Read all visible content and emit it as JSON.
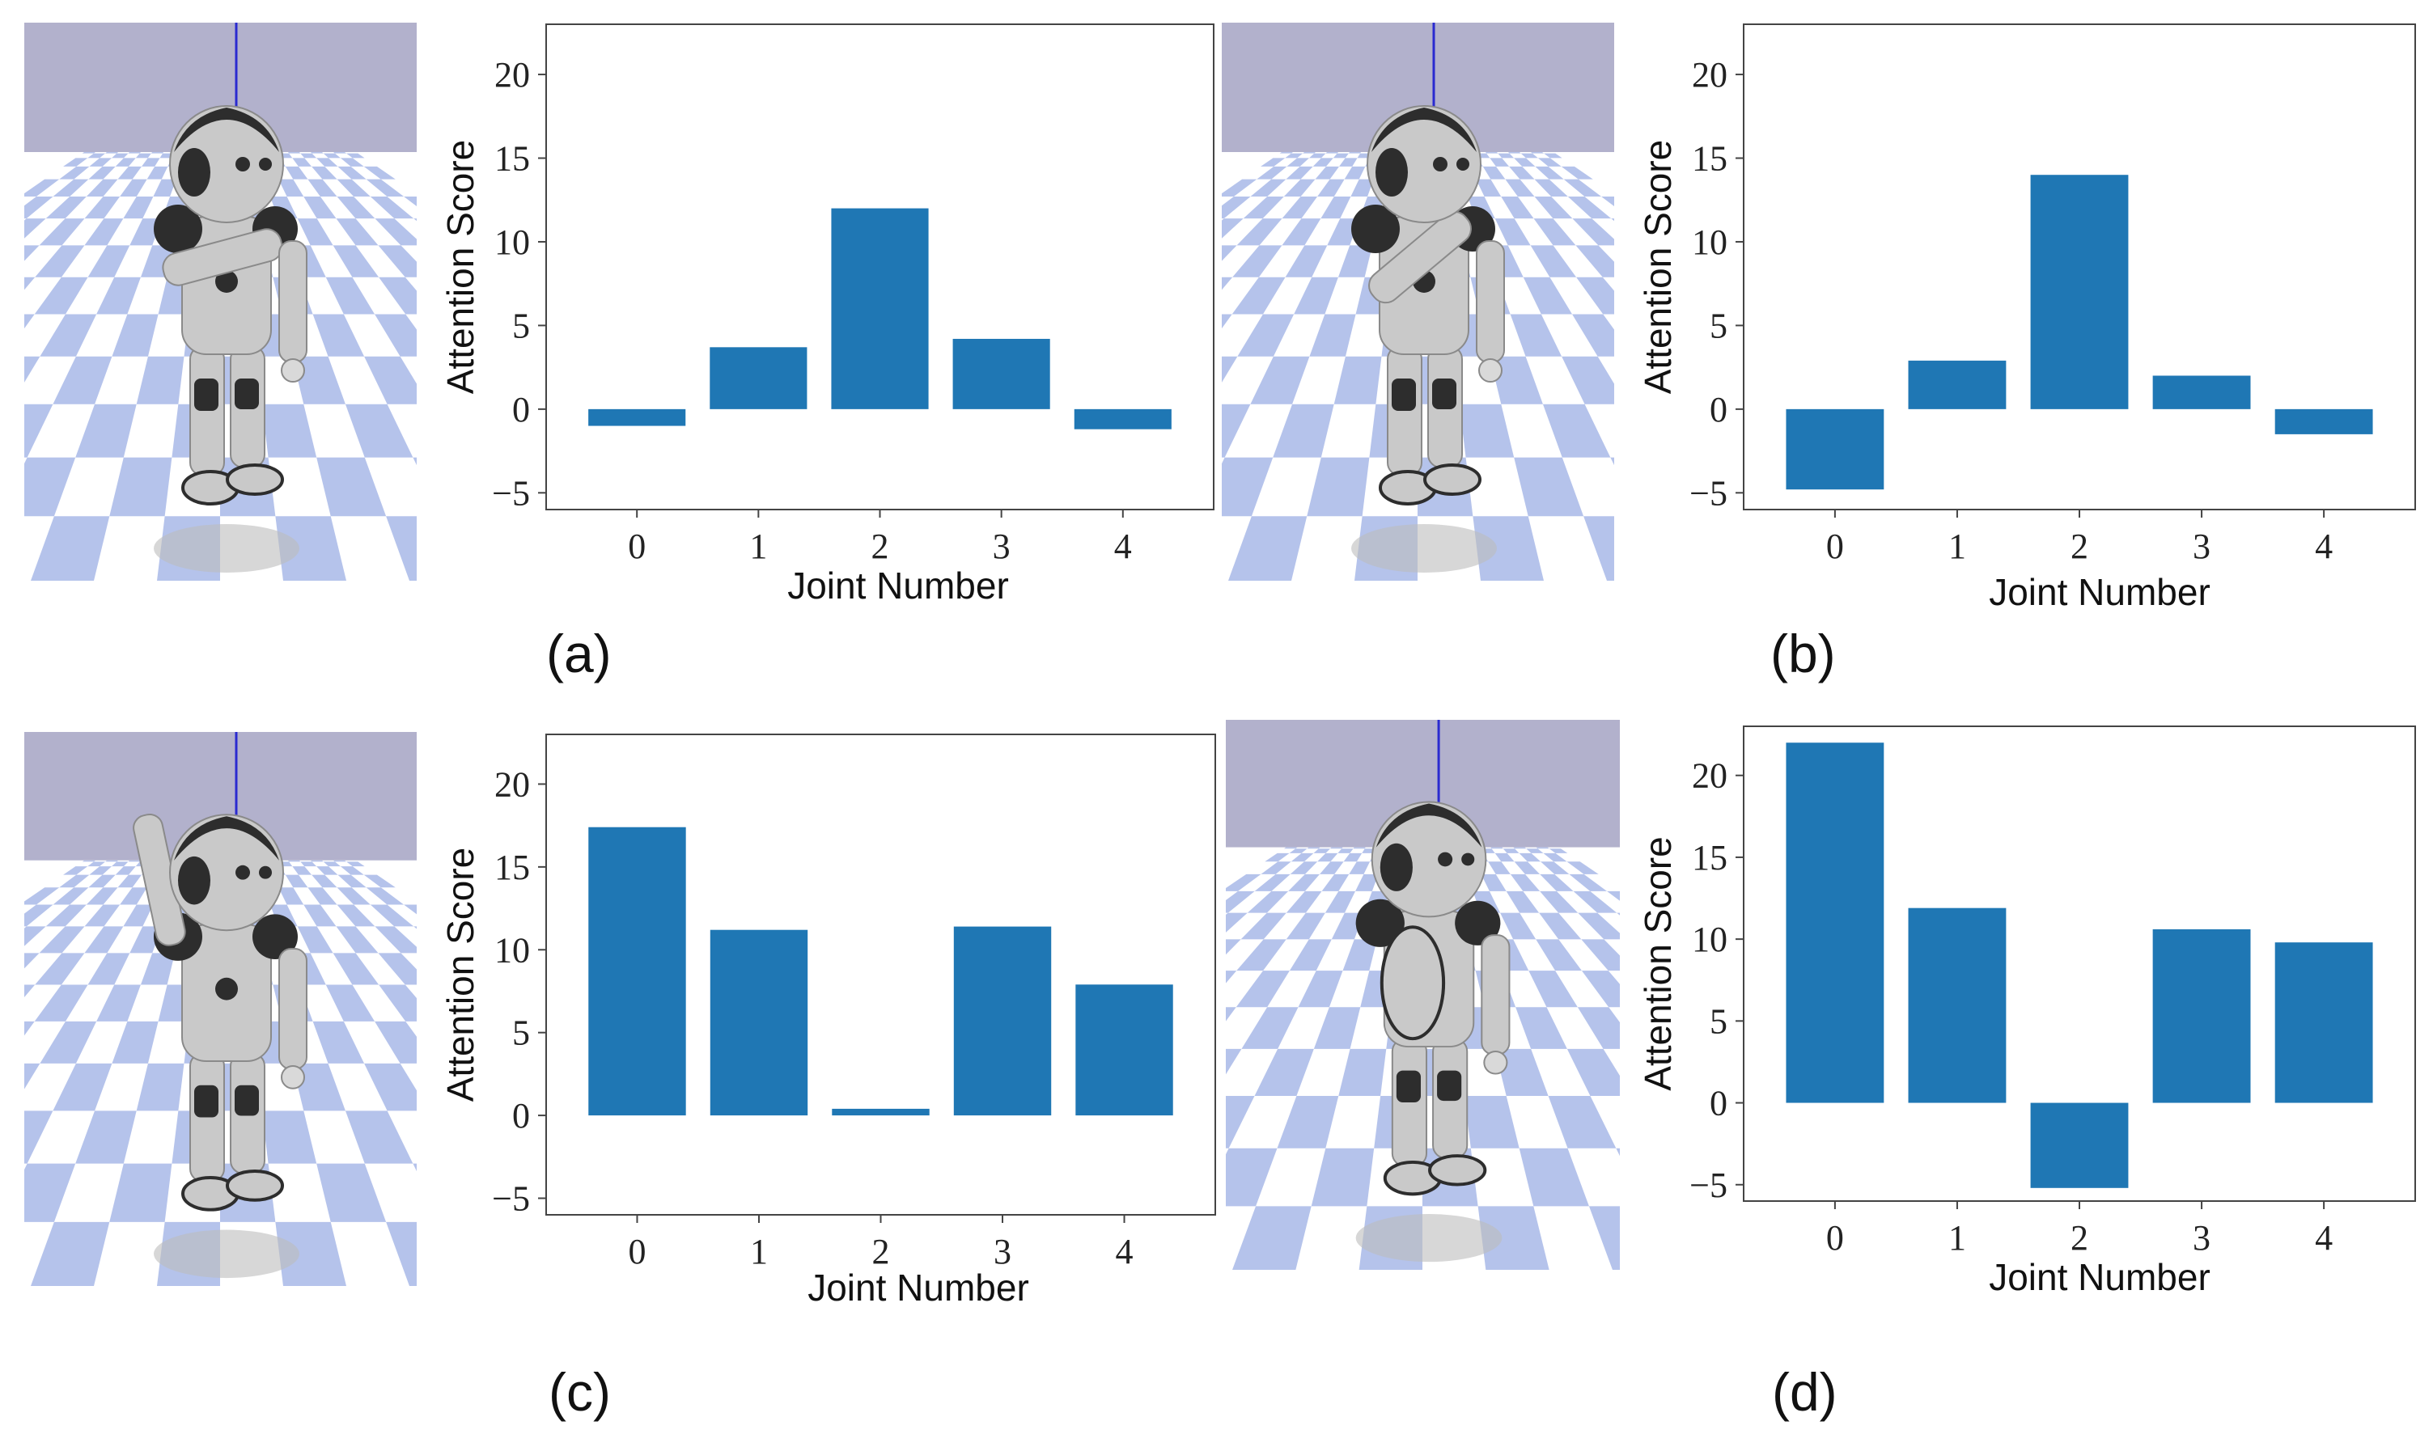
{
  "colors": {
    "bar": "#1f77b4",
    "sky": "#b2b1cc",
    "floor_light": "#ffffff",
    "floor_tile": "#a8b9e8",
    "robot_body": "#c9c9c9",
    "robot_dark": "#2d2d2d"
  },
  "labels": {
    "a": "(a)",
    "b": "(b)",
    "c": "(c)",
    "d": "(d)"
  },
  "chart_data": [
    {
      "type": "bar",
      "panel": "(a)",
      "categories": [
        "0",
        "1",
        "2",
        "3",
        "4"
      ],
      "values": [
        -1.0,
        3.7,
        12.0,
        4.2,
        -1.2
      ],
      "xlabel": "Joint Number",
      "ylabel": "Attention Score",
      "ylim": [
        -6,
        23
      ],
      "yticks": [
        -5,
        0,
        5,
        10,
        15,
        20
      ],
      "ytick_labels": [
        "−5",
        "0",
        "5",
        "10",
        "15",
        "20"
      ],
      "grid": false
    },
    {
      "type": "bar",
      "panel": "(b)",
      "categories": [
        "0",
        "1",
        "2",
        "3",
        "4"
      ],
      "values": [
        -4.8,
        2.9,
        14.0,
        2.0,
        -1.5
      ],
      "xlabel": "Joint Number",
      "ylabel": "Attention Score",
      "ylim": [
        -6,
        23
      ],
      "yticks": [
        -5,
        0,
        5,
        10,
        15,
        20
      ],
      "ytick_labels": [
        "−5",
        "0",
        "5",
        "10",
        "15",
        "20"
      ],
      "grid": false
    },
    {
      "type": "bar",
      "panel": "(c)",
      "categories": [
        "0",
        "1",
        "2",
        "3",
        "4"
      ],
      "values": [
        17.4,
        11.2,
        0.4,
        11.4,
        7.9
      ],
      "xlabel": "Joint Number",
      "ylabel": "Attention Score",
      "ylim": [
        -6,
        23
      ],
      "yticks": [
        -5,
        0,
        5,
        10,
        15,
        20
      ],
      "ytick_labels": [
        "−5",
        "0",
        "5",
        "10",
        "15",
        "20"
      ],
      "grid": false
    },
    {
      "type": "bar",
      "panel": "(d)",
      "categories": [
        "0",
        "1",
        "2",
        "3",
        "4"
      ],
      "values": [
        22.0,
        11.9,
        -5.2,
        10.6,
        9.8
      ],
      "xlabel": "Joint Number",
      "ylabel": "Attention Score",
      "ylim": [
        -6,
        23
      ],
      "yticks": [
        -5,
        0,
        5,
        10,
        15,
        20
      ],
      "ytick_labels": [
        "−5",
        "0",
        "5",
        "10",
        "15",
        "20"
      ],
      "grid": false
    }
  ]
}
